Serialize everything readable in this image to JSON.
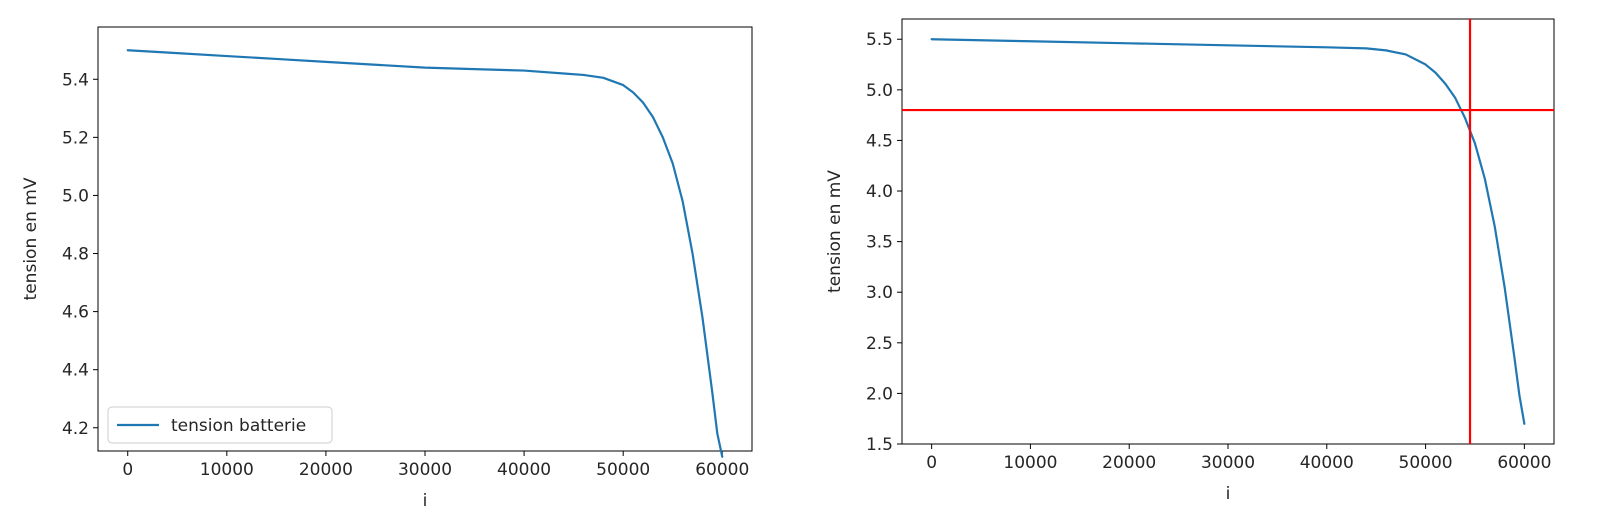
{
  "chart_data": [
    {
      "type": "line",
      "title": "",
      "xlabel": "i",
      "ylabel": "tension en mV",
      "xlim": [
        -3000,
        63000
      ],
      "ylim": [
        4.12,
        5.58
      ],
      "xticks": [
        0,
        10000,
        20000,
        30000,
        40000,
        50000,
        60000
      ],
      "yticks": [
        4.2,
        4.4,
        4.6,
        4.8,
        5.0,
        5.2,
        5.4
      ],
      "ytick_decimals": 1,
      "grid": false,
      "legend": {
        "placement": "lower-left",
        "entries": [
          "tension batterie"
        ]
      },
      "series": [
        {
          "name": "tension batterie",
          "color": "#1f77b4",
          "x": [
            0,
            5000,
            10000,
            15000,
            20000,
            25000,
            30000,
            35000,
            40000,
            44000,
            46000,
            48000,
            50000,
            51000,
            52000,
            53000,
            54000,
            55000,
            56000,
            57000,
            58000,
            59000,
            59500,
            60000
          ],
          "y": [
            5.5,
            5.49,
            5.48,
            5.47,
            5.46,
            5.45,
            5.44,
            5.435,
            5.43,
            5.42,
            5.415,
            5.405,
            5.38,
            5.355,
            5.32,
            5.27,
            5.2,
            5.11,
            4.98,
            4.8,
            4.58,
            4.32,
            4.18,
            4.1
          ]
        }
      ]
    },
    {
      "type": "line",
      "title": "",
      "xlabel": "i",
      "ylabel": "tension en mV",
      "xlim": [
        -3000,
        63000
      ],
      "ylim": [
        1.5,
        5.7
      ],
      "xticks": [
        0,
        10000,
        20000,
        30000,
        40000,
        50000,
        60000
      ],
      "yticks": [
        1.5,
        2.0,
        2.5,
        3.0,
        3.5,
        4.0,
        4.5,
        5.0,
        5.5
      ],
      "ytick_decimals": 1,
      "grid": false,
      "series": [
        {
          "color": "#1f77b4",
          "x": [
            0,
            10000,
            20000,
            30000,
            40000,
            44000,
            46000,
            48000,
            50000,
            51000,
            52000,
            53000,
            54000,
            55000,
            56000,
            57000,
            58000,
            59000,
            59500,
            60000
          ],
          "y": [
            5.5,
            5.48,
            5.46,
            5.44,
            5.42,
            5.41,
            5.39,
            5.35,
            5.25,
            5.17,
            5.06,
            4.92,
            4.72,
            4.47,
            4.12,
            3.65,
            3.05,
            2.35,
            1.98,
            1.7
          ]
        }
      ],
      "reference_lines": [
        {
          "orientation": "horizontal",
          "value": 4.8,
          "color": "#ff0000"
        },
        {
          "orientation": "vertical",
          "value": 54500,
          "color": "#ff0000"
        }
      ]
    }
  ]
}
